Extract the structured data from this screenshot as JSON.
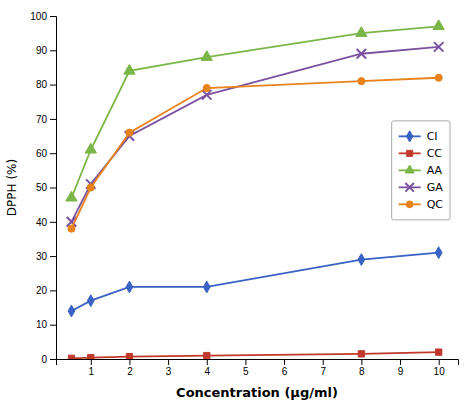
{
  "chart_data": {
    "type": "line",
    "x_label": "Concentration (μg/ml)",
    "y_label": "DPPH (%)",
    "x": [
      0.5,
      1,
      2,
      4,
      8,
      10
    ],
    "series": [
      {
        "name": "CI",
        "color": "#3a62c4",
        "marker": "diamond",
        "values": [
          14,
          17,
          21,
          21,
          29,
          31
        ]
      },
      {
        "name": "CC",
        "color": "#c0392b",
        "marker": "square",
        "values": [
          0.2,
          0.4,
          0.7,
          1.0,
          1.5,
          2.0
        ]
      },
      {
        "name": "AA",
        "color": "#7ab648",
        "marker": "triangle",
        "values": [
          47,
          61,
          84,
          88,
          95,
          97
        ]
      },
      {
        "name": "GA",
        "color": "#7b52a0",
        "marker": "x",
        "values": [
          40,
          51,
          65,
          77,
          89,
          91
        ]
      },
      {
        "name": "QC",
        "color": "#e8821a",
        "marker": "circle",
        "values": [
          38,
          50,
          66,
          79,
          81,
          82
        ]
      }
    ],
    "xlim": [
      0.1,
      10.5
    ],
    "ylim": [
      0,
      100
    ],
    "xticks": [
      1,
      2,
      3,
      4,
      5,
      6,
      7,
      8,
      9,
      10
    ],
    "yticks": [
      0,
      10,
      20,
      30,
      40,
      50,
      60,
      70,
      80,
      90,
      100
    ],
    "grid": false,
    "legend": "right"
  }
}
